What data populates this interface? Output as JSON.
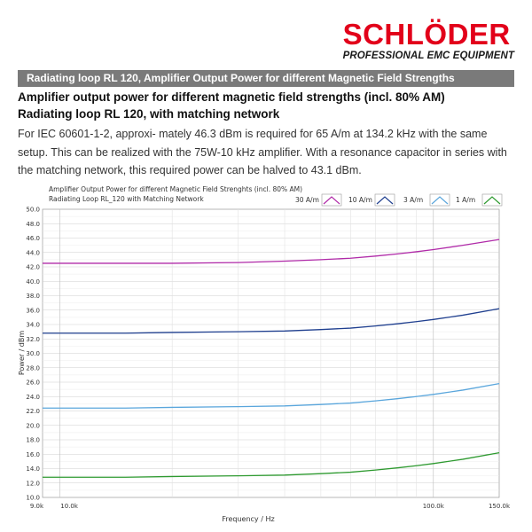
{
  "brand": {
    "name": "SCHLÖDER",
    "tagline": "PROFESSIONAL EMC EQUIPMENT",
    "color": "#e2001a"
  },
  "banner": {
    "text": "Radiating loop RL 120, Amplifier Output Power for different Magnetic Field Strengths"
  },
  "heading": {
    "line1": "Amplifier output power for different magnetic field strengths (incl. 80% AM)",
    "line2": "Radiating loop RL 120, with matching network"
  },
  "paragraph": {
    "text": "For  IEC  60601-1-2,  approxi- mately 46.3 dBm is required for 65 A/m at 134.2 kHz with the same setup. This can be realized with the 75W-10 kHz amplifier. With a resonance capacitor in series with the matching network, this required power can be halved to 43.1 dBm."
  },
  "chart_data": {
    "type": "line",
    "title": "Amplifier Output Power for different Magnetic Field Strenghts (incl. 80% AM)",
    "subtitle": "Radiating Loop RL_120 with Matching Network",
    "xlabel": "Frequency / Hz",
    "ylabel": "Power / dBm",
    "x_scale": "log",
    "xlim": [
      9000,
      150000
    ],
    "ylim": [
      10,
      50
    ],
    "x_ticks": [
      {
        "value": 9000,
        "label": "9.0k"
      },
      {
        "value": 10000,
        "label": "10.0k"
      },
      {
        "value": 100000,
        "label": "100.0k"
      },
      {
        "value": 150000,
        "label": "150.0k"
      }
    ],
    "y_ticks": [
      "10.0",
      "12.0",
      "14.0",
      "16.0",
      "18.0",
      "20.0",
      "22.0",
      "24.0",
      "26.0",
      "28.0",
      "30.0",
      "32.0",
      "34.0",
      "36.0",
      "38.0",
      "40.0",
      "42.0",
      "44.0",
      "46.0",
      "48.0",
      "50.0"
    ],
    "grid": true,
    "legend_position": "top-right",
    "x": [
      9000,
      10000,
      15000,
      20000,
      30000,
      40000,
      50000,
      60000,
      70000,
      80000,
      90000,
      100000,
      120000,
      150000
    ],
    "series": [
      {
        "name": "30 A/m",
        "color": "#b02aa8",
        "values": [
          42.5,
          42.5,
          42.5,
          42.5,
          42.6,
          42.8,
          43.0,
          43.2,
          43.5,
          43.8,
          44.1,
          44.4,
          45.0,
          45.8
        ]
      },
      {
        "name": "10 A/m",
        "color": "#1f3f8f",
        "values": [
          32.8,
          32.8,
          32.8,
          32.9,
          33.0,
          33.1,
          33.3,
          33.5,
          33.8,
          34.1,
          34.4,
          34.7,
          35.3,
          36.2
        ]
      },
      {
        "name": "3 A/m",
        "color": "#5aa6dc",
        "values": [
          22.4,
          22.4,
          22.4,
          22.5,
          22.6,
          22.7,
          22.9,
          23.1,
          23.4,
          23.7,
          24.0,
          24.3,
          24.9,
          25.8
        ]
      },
      {
        "name": "1 A/m",
        "color": "#2e9a30",
        "values": [
          12.8,
          12.8,
          12.8,
          12.9,
          13.0,
          13.1,
          13.3,
          13.5,
          13.8,
          14.1,
          14.4,
          14.7,
          15.3,
          16.2
        ]
      }
    ]
  }
}
